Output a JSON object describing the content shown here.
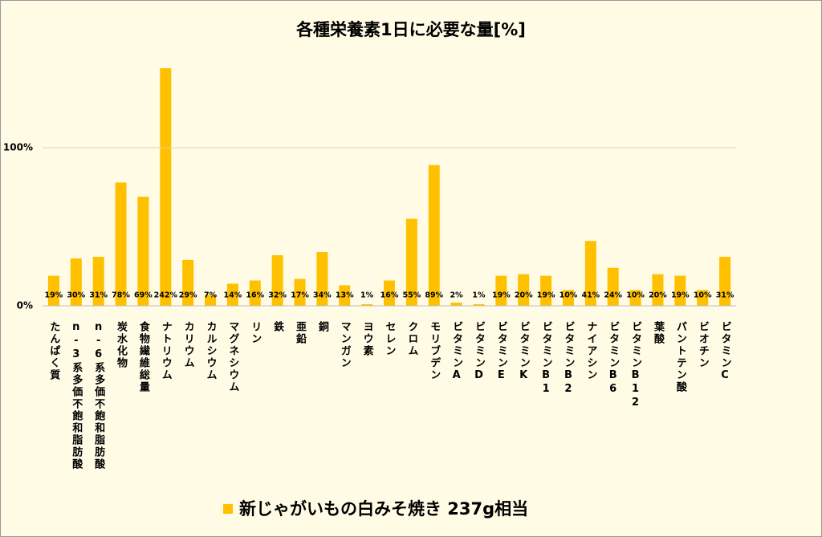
{
  "chart_data": {
    "type": "bar",
    "title": "各種栄養素1日に必要な量[%]",
    "categories": [
      "たんぱく質",
      "n-3系多価不飽和脂肪酸",
      "n-6系多価不飽和脂肪酸",
      "炭水化物",
      "食物繊維総量",
      "ナトリウム",
      "カリウム",
      "カルシウム",
      "マグネシウム",
      "リン",
      "鉄",
      "亜鉛",
      "銅",
      "マンガン",
      "ヨウ素",
      "セレン",
      "クロム",
      "モリブデン",
      "ビタミンA",
      "ビタミンD",
      "ビタミンE",
      "ビタミンK",
      "ビタミンB1",
      "ビタミンB2",
      "ナイアシン",
      "ビタミンB6",
      "ビタミンB12",
      "葉酸",
      "パントテン酸",
      "ビオチン",
      "ビタミンC"
    ],
    "series": [
      {
        "name": "新じゃがいもの白みそ焼き 237g相当",
        "color": "#ffc000",
        "values": [
          19,
          30,
          31,
          78,
          69,
          242,
          29,
          7,
          14,
          16,
          32,
          17,
          34,
          13,
          1,
          16,
          55,
          89,
          2,
          1,
          19,
          20,
          19,
          10,
          41,
          24,
          10,
          20,
          19,
          10,
          31
        ],
        "value_labels": [
          "19%",
          "30%",
          "31%",
          "78%",
          "69%",
          "242%",
          "29%",
          "7%",
          "14%",
          "16%",
          "32%",
          "17%",
          "34%",
          "13%",
          "1%",
          "16%",
          "55%",
          "89%",
          "2%",
          "1%",
          "19%",
          "20%",
          "19%",
          "10%",
          "41%",
          "24%",
          "10%",
          "20%",
          "19%",
          "10%",
          "31%"
        ]
      }
    ],
    "ylim": [
      0,
      150
    ],
    "yticks": [
      {
        "value": 0,
        "label": "0%"
      },
      {
        "value": 100,
        "label": "100%"
      }
    ],
    "grid": true,
    "legend": "bottom"
  }
}
